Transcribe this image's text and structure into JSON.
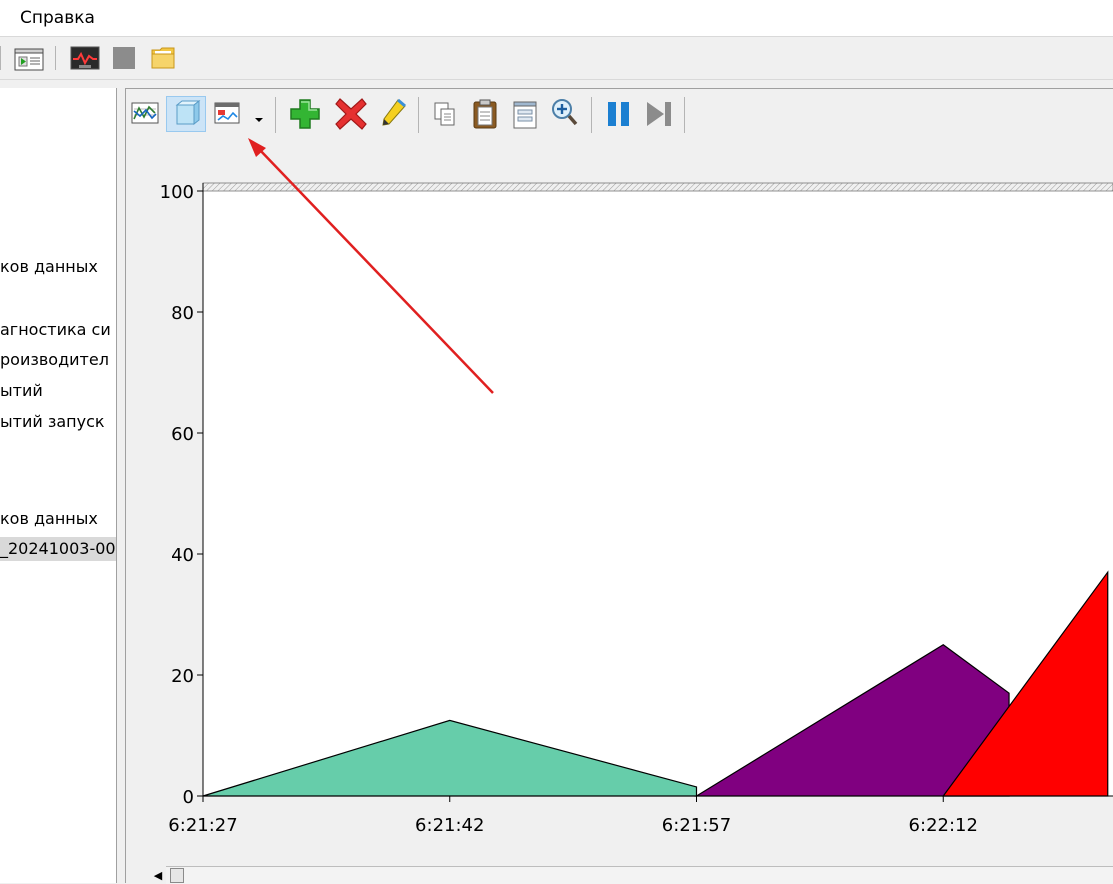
{
  "menubar": {
    "help_label": "Справка"
  },
  "main_toolbar": {
    "icons": [
      "properties-icon",
      "performance-monitor-icon",
      "stop-icon",
      "folder-icon"
    ]
  },
  "tree": {
    "items": [
      "ков данных",
      "агностика си",
      "роизводител",
      "ытий",
      "ытий запуск",
      "ков данных",
      "_20241003-00"
    ],
    "selected_index": 6
  },
  "perf_toolbar": {
    "icons": [
      "view-graph-icon",
      "view-histogram-icon",
      "change-graph-type-icon",
      "dropdown-arrow-icon",
      "add-counter-icon",
      "delete-counter-icon",
      "highlight-icon",
      "copy-properties-icon",
      "paste-counter-list-icon",
      "properties-icon",
      "zoom-icon",
      "freeze-display-icon",
      "update-data-icon"
    ]
  },
  "colors": {
    "series_1": "#66cdaa",
    "series_2": "#800080",
    "series_3": "#ff0000",
    "annotation_arrow": "#e02020"
  },
  "chart_data": {
    "type": "area",
    "title": "",
    "xlabel": "",
    "ylabel": "",
    "ylim": [
      0,
      100
    ],
    "yticks": [
      0,
      20,
      40,
      60,
      80,
      100
    ],
    "xtick_labels": [
      "6:21:27",
      "6:21:42",
      "6:21:57",
      "6:22:12"
    ],
    "series": [
      {
        "color": "#66cdaa",
        "x": [
          "6:21:27",
          "6:21:42",
          "6:21:57"
        ],
        "values": [
          0,
          12.5,
          1.5
        ]
      },
      {
        "color": "#800080",
        "x": [
          "6:21:57",
          "6:22:12",
          "6:22:16"
        ],
        "values": [
          0,
          25,
          17
        ]
      },
      {
        "color": "#ff0000",
        "x": [
          "6:22:12",
          "6:22:22"
        ],
        "values": [
          0,
          37
        ]
      }
    ],
    "grid": false,
    "legend": "none"
  }
}
